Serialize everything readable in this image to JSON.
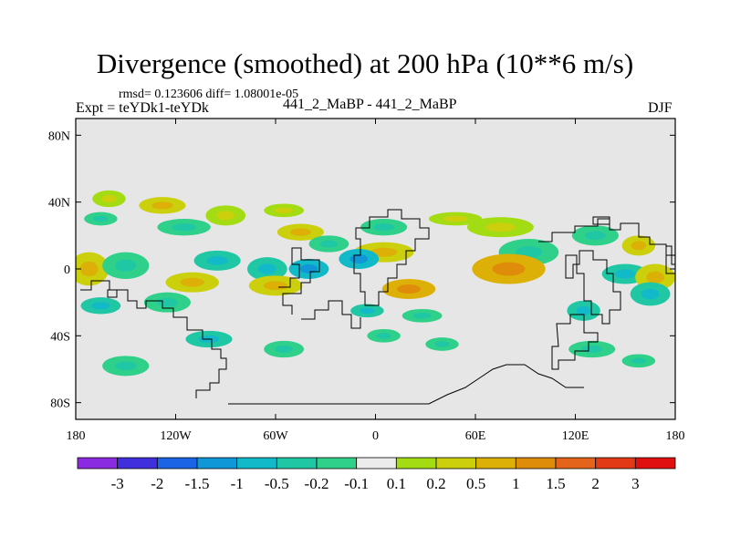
{
  "chart_data": {
    "type": "contour-map",
    "title": "Divergence (smoothed) at 200 hPa (10**6 m/s)",
    "stats_line": "rmsd= 0.123606 diff= 1.08001e-05",
    "experiment_label": "Expt = teYDk1-teYDk",
    "comparison_label": "441_2_MaBP - 441_2_MaBP",
    "season": "DJF",
    "x_ticks": [
      "180",
      "120W",
      "60W",
      "0",
      "60E",
      "120E",
      "180"
    ],
    "x_values": [
      -180,
      -120,
      -60,
      0,
      60,
      120,
      180
    ],
    "y_ticks": [
      "80N",
      "40N",
      "0",
      "40S",
      "80S"
    ],
    "y_values": [
      80,
      40,
      0,
      -40,
      -80
    ],
    "xlim": [
      -180,
      180
    ],
    "ylim": [
      -90,
      90
    ],
    "colorbar": {
      "labels": [
        "-3",
        "-2",
        "-1.5",
        "-1",
        "-0.5",
        "-0.2",
        "-0.1",
        "0.1",
        "0.2",
        "0.5",
        "1",
        "1.5",
        "2",
        "3"
      ],
      "colors": [
        "#8a2be2",
        "#3f2fdc",
        "#1b64e6",
        "#0f97d8",
        "#12b9c9",
        "#20c7a4",
        "#2fd089",
        "#ececec",
        "#a4dc14",
        "#cbcf0c",
        "#dcb006",
        "#e08c0b",
        "#e3641a",
        "#e23a16",
        "#e01010"
      ]
    },
    "anomalies": [
      {
        "lon": -160,
        "lat": 42,
        "rx": 10,
        "ry": 5,
        "level": 8
      },
      {
        "lon": -128,
        "lat": 38,
        "rx": 14,
        "ry": 5,
        "level": 9
      },
      {
        "lon": -165,
        "lat": 30,
        "rx": 10,
        "ry": 4,
        "level": 6
      },
      {
        "lon": -115,
        "lat": 25,
        "rx": 16,
        "ry": 5,
        "level": 6
      },
      {
        "lon": -90,
        "lat": 32,
        "rx": 12,
        "ry": 6,
        "level": 8
      },
      {
        "lon": -55,
        "lat": 35,
        "rx": 12,
        "ry": 4,
        "level": 8
      },
      {
        "lon": -45,
        "lat": 22,
        "rx": 14,
        "ry": 5,
        "level": 9
      },
      {
        "lon": -28,
        "lat": 15,
        "rx": 12,
        "ry": 5,
        "level": 6
      },
      {
        "lon": 5,
        "lat": 25,
        "rx": 14,
        "ry": 5,
        "level": 6
      },
      {
        "lon": 5,
        "lat": 10,
        "rx": 18,
        "ry": 6,
        "level": 9
      },
      {
        "lon": -10,
        "lat": 6,
        "rx": 12,
        "ry": 6,
        "level": 4
      },
      {
        "lon": 48,
        "lat": 30,
        "rx": 16,
        "ry": 4,
        "level": 8
      },
      {
        "lon": 75,
        "lat": 25,
        "rx": 20,
        "ry": 6,
        "level": 8
      },
      {
        "lon": 92,
        "lat": 10,
        "rx": 18,
        "ry": 8,
        "level": 6
      },
      {
        "lon": 80,
        "lat": 0,
        "rx": 22,
        "ry": 9,
        "level": 10
      },
      {
        "lon": 132,
        "lat": 20,
        "rx": 14,
        "ry": 6,
        "level": 6
      },
      {
        "lon": 158,
        "lat": 14,
        "rx": 10,
        "ry": 6,
        "level": 9
      },
      {
        "lon": 150,
        "lat": -3,
        "rx": 14,
        "ry": 6,
        "level": 5
      },
      {
        "lon": 168,
        "lat": -5,
        "rx": 12,
        "ry": 8,
        "level": 9
      },
      {
        "lon": -172,
        "lat": 0,
        "rx": 12,
        "ry": 10,
        "level": 9
      },
      {
        "lon": -150,
        "lat": 2,
        "rx": 14,
        "ry": 8,
        "level": 6
      },
      {
        "lon": -95,
        "lat": 5,
        "rx": 14,
        "ry": 6,
        "level": 5
      },
      {
        "lon": -65,
        "lat": 0,
        "rx": 12,
        "ry": 7,
        "level": 5
      },
      {
        "lon": -40,
        "lat": 0,
        "rx": 12,
        "ry": 6,
        "level": 4
      },
      {
        "lon": -110,
        "lat": -8,
        "rx": 16,
        "ry": 6,
        "level": 9
      },
      {
        "lon": -60,
        "lat": -10,
        "rx": 16,
        "ry": 6,
        "level": 9
      },
      {
        "lon": 20,
        "lat": -12,
        "rx": 16,
        "ry": 6,
        "level": 10
      },
      {
        "lon": 28,
        "lat": -28,
        "rx": 12,
        "ry": 4,
        "level": 6
      },
      {
        "lon": -5,
        "lat": -25,
        "rx": 10,
        "ry": 4,
        "level": 5
      },
      {
        "lon": -125,
        "lat": -20,
        "rx": 14,
        "ry": 6,
        "level": 6
      },
      {
        "lon": -165,
        "lat": -22,
        "rx": 12,
        "ry": 5,
        "level": 5
      },
      {
        "lon": 125,
        "lat": -25,
        "rx": 10,
        "ry": 6,
        "level": 5
      },
      {
        "lon": 165,
        "lat": -15,
        "rx": 12,
        "ry": 7,
        "level": 5
      },
      {
        "lon": -100,
        "lat": -42,
        "rx": 14,
        "ry": 5,
        "level": 5
      },
      {
        "lon": -55,
        "lat": -48,
        "rx": 12,
        "ry": 5,
        "level": 6
      },
      {
        "lon": 5,
        "lat": -40,
        "rx": 10,
        "ry": 4,
        "level": 6
      },
      {
        "lon": 40,
        "lat": -45,
        "rx": 10,
        "ry": 4,
        "level": 6
      },
      {
        "lon": 130,
        "lat": -48,
        "rx": 14,
        "ry": 5,
        "level": 6
      },
      {
        "lon": 158,
        "lat": -55,
        "rx": 10,
        "ry": 4,
        "level": 6
      },
      {
        "lon": -150,
        "lat": -58,
        "rx": 14,
        "ry": 6,
        "level": 6
      }
    ]
  }
}
